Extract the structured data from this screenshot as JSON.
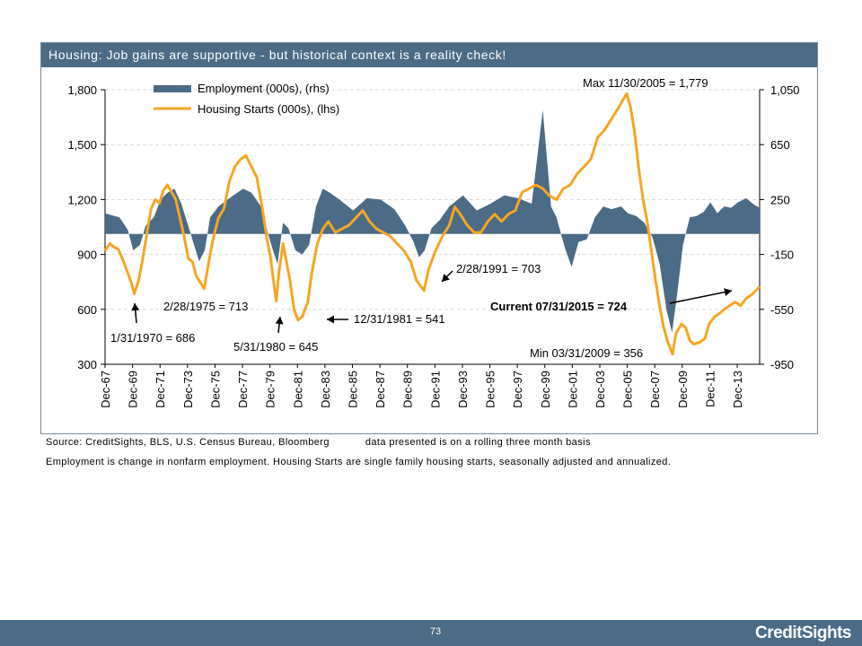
{
  "chart_data": {
    "type": "area+line",
    "title": "Housing: Job gains are supportive - but historical context is a reality check!",
    "x_tick_labels": [
      "Dec-67",
      "Dec-69",
      "Dec-71",
      "Dec-73",
      "Dec-75",
      "Dec-77",
      "Dec-79",
      "Dec-81",
      "Dec-83",
      "Dec-85",
      "Dec-87",
      "Dec-89",
      "Dec-91",
      "Dec-93",
      "Dec-95",
      "Dec-97",
      "Dec-99",
      "Dec-01",
      "Dec-03",
      "Dec-05",
      "Dec-07",
      "Dec-09",
      "Dec-11",
      "Dec-13"
    ],
    "x_range": [
      "1967-12",
      "2015-07"
    ],
    "y_left": {
      "ticks": [
        1800,
        1500,
        1200,
        900,
        600,
        300
      ],
      "tick_labels": [
        "1,800",
        "1,500",
        "1,200",
        "900",
        "600",
        "300"
      ],
      "range": [
        300,
        1800
      ]
    },
    "y_right": {
      "ticks": [
        1050,
        650,
        250,
        -150,
        -550,
        -950
      ],
      "tick_labels": [
        "1,050",
        "650",
        "250",
        "-150",
        "-550",
        "-950"
      ],
      "range": [
        -950,
        1050
      ]
    },
    "legend": {
      "placement": "top-left",
      "entries": [
        "Employment (000s), (rhs)",
        "Housing Starts (000s), (lhs)"
      ]
    },
    "series": [
      {
        "name": "Housing Starts (000s), (lhs)",
        "axis": "left",
        "color": "#f5a623",
        "points": [
          [
            1967.95,
            920
          ],
          [
            1968.3,
            960
          ],
          [
            1968.6,
            940
          ],
          [
            1968.9,
            930
          ],
          [
            1969.2,
            880
          ],
          [
            1969.5,
            820
          ],
          [
            1969.8,
            760
          ],
          [
            1970.08,
            686
          ],
          [
            1970.4,
            760
          ],
          [
            1970.7,
            880
          ],
          [
            1971.0,
            1020
          ],
          [
            1971.3,
            1150
          ],
          [
            1971.6,
            1200
          ],
          [
            1971.9,
            1180
          ],
          [
            1972.2,
            1250
          ],
          [
            1972.5,
            1280
          ],
          [
            1972.8,
            1240
          ],
          [
            1973.1,
            1200
          ],
          [
            1973.4,
            1100
          ],
          [
            1973.7,
            1000
          ],
          [
            1974.0,
            880
          ],
          [
            1974.3,
            860
          ],
          [
            1974.6,
            780
          ],
          [
            1975.16,
            713
          ],
          [
            1975.5,
            860
          ],
          [
            1975.8,
            980
          ],
          [
            1976.2,
            1100
          ],
          [
            1976.6,
            1150
          ],
          [
            1977.0,
            1300
          ],
          [
            1977.4,
            1380
          ],
          [
            1977.8,
            1420
          ],
          [
            1978.2,
            1440
          ],
          [
            1978.6,
            1380
          ],
          [
            1979.0,
            1320
          ],
          [
            1979.4,
            1150
          ],
          [
            1979.7,
            1000
          ],
          [
            1980.0,
            880
          ],
          [
            1980.2,
            760
          ],
          [
            1980.41,
            645
          ],
          [
            1980.6,
            800
          ],
          [
            1980.9,
            960
          ],
          [
            1981.1,
            880
          ],
          [
            1981.4,
            760
          ],
          [
            1981.7,
            600
          ],
          [
            1981.99,
            541
          ],
          [
            1982.3,
            560
          ],
          [
            1982.7,
            640
          ],
          [
            1983.0,
            800
          ],
          [
            1983.4,
            960
          ],
          [
            1983.8,
            1040
          ],
          [
            1984.2,
            1080
          ],
          [
            1984.7,
            1020
          ],
          [
            1985.2,
            1040
          ],
          [
            1985.7,
            1060
          ],
          [
            1986.2,
            1100
          ],
          [
            1986.7,
            1140
          ],
          [
            1987.2,
            1080
          ],
          [
            1987.7,
            1040
          ],
          [
            1988.2,
            1020
          ],
          [
            1988.7,
            1000
          ],
          [
            1989.2,
            960
          ],
          [
            1989.7,
            920
          ],
          [
            1990.2,
            860
          ],
          [
            1990.6,
            760
          ],
          [
            1991.16,
            703
          ],
          [
            1991.5,
            820
          ],
          [
            1992.0,
            920
          ],
          [
            1992.5,
            1000
          ],
          [
            1993.0,
            1060
          ],
          [
            1993.4,
            1160
          ],
          [
            1993.8,
            1120
          ],
          [
            1994.3,
            1060
          ],
          [
            1994.8,
            1020
          ],
          [
            1995.3,
            1020
          ],
          [
            1995.8,
            1080
          ],
          [
            1996.3,
            1120
          ],
          [
            1996.8,
            1080
          ],
          [
            1997.3,
            1120
          ],
          [
            1997.8,
            1140
          ],
          [
            1998.3,
            1240
          ],
          [
            1998.8,
            1260
          ],
          [
            1999.3,
            1280
          ],
          [
            1999.8,
            1260
          ],
          [
            2000.3,
            1220
          ],
          [
            2000.8,
            1200
          ],
          [
            2001.3,
            1260
          ],
          [
            2001.8,
            1280
          ],
          [
            2002.3,
            1340
          ],
          [
            2002.8,
            1380
          ],
          [
            2003.3,
            1420
          ],
          [
            2003.8,
            1540
          ],
          [
            2004.3,
            1580
          ],
          [
            2004.8,
            1640
          ],
          [
            2005.3,
            1700
          ],
          [
            2005.6,
            1740
          ],
          [
            2005.91,
            1779
          ],
          [
            2006.2,
            1700
          ],
          [
            2006.5,
            1560
          ],
          [
            2006.8,
            1360
          ],
          [
            2007.1,
            1200
          ],
          [
            2007.4,
            1080
          ],
          [
            2007.7,
            920
          ],
          [
            2008.0,
            760
          ],
          [
            2008.3,
            620
          ],
          [
            2008.6,
            500
          ],
          [
            2008.9,
            420
          ],
          [
            2009.24,
            356
          ],
          [
            2009.5,
            470
          ],
          [
            2009.9,
            520
          ],
          [
            2010.2,
            500
          ],
          [
            2010.5,
            430
          ],
          [
            2010.8,
            410
          ],
          [
            2011.2,
            420
          ],
          [
            2011.6,
            440
          ],
          [
            2011.9,
            520
          ],
          [
            2012.3,
            560
          ],
          [
            2012.7,
            580
          ],
          [
            2013.0,
            600
          ],
          [
            2013.4,
            620
          ],
          [
            2013.8,
            640
          ],
          [
            2014.2,
            620
          ],
          [
            2014.6,
            660
          ],
          [
            2015.0,
            680
          ],
          [
            2015.58,
            724
          ]
        ]
      },
      {
        "name": "Employment (000s), (rhs)",
        "axis": "right",
        "color": "#4b6b86",
        "points": [
          [
            1967.95,
            150
          ],
          [
            1969.0,
            120
          ],
          [
            1969.6,
            30
          ],
          [
            1970.0,
            -120
          ],
          [
            1970.5,
            -80
          ],
          [
            1970.9,
            60
          ],
          [
            1971.5,
            120
          ],
          [
            1972.0,
            250
          ],
          [
            1972.5,
            300
          ],
          [
            1973.0,
            330
          ],
          [
            1973.5,
            220
          ],
          [
            1974.0,
            60
          ],
          [
            1974.3,
            -40
          ],
          [
            1974.8,
            -200
          ],
          [
            1975.2,
            -120
          ],
          [
            1975.6,
            120
          ],
          [
            1976.2,
            200
          ],
          [
            1977.0,
            260
          ],
          [
            1978.0,
            330
          ],
          [
            1978.6,
            300
          ],
          [
            1979.3,
            200
          ],
          [
            1979.7,
            40
          ],
          [
            1980.1,
            -100
          ],
          [
            1980.5,
            -220
          ],
          [
            1980.9,
            80
          ],
          [
            1981.3,
            40
          ],
          [
            1981.8,
            -120
          ],
          [
            1982.3,
            -150
          ],
          [
            1982.8,
            -80
          ],
          [
            1983.3,
            200
          ],
          [
            1983.8,
            330
          ],
          [
            1984.3,
            300
          ],
          [
            1985.0,
            250
          ],
          [
            1986.0,
            170
          ],
          [
            1987.0,
            260
          ],
          [
            1988.0,
            250
          ],
          [
            1989.0,
            180
          ],
          [
            1989.8,
            60
          ],
          [
            1990.4,
            -60
          ],
          [
            1990.8,
            -170
          ],
          [
            1991.2,
            -120
          ],
          [
            1991.7,
            40
          ],
          [
            1992.3,
            100
          ],
          [
            1993.0,
            200
          ],
          [
            1994.0,
            280
          ],
          [
            1995.0,
            170
          ],
          [
            1996.0,
            220
          ],
          [
            1997.0,
            280
          ],
          [
            1998.0,
            260
          ],
          [
            1999.0,
            220
          ],
          [
            1999.8,
            900
          ],
          [
            2000.4,
            200
          ],
          [
            2000.8,
            120
          ],
          [
            2001.4,
            -100
          ],
          [
            2001.9,
            -240
          ],
          [
            2002.4,
            -60
          ],
          [
            2003.0,
            -40
          ],
          [
            2003.6,
            120
          ],
          [
            2004.2,
            200
          ],
          [
            2004.8,
            180
          ],
          [
            2005.5,
            200
          ],
          [
            2006.0,
            150
          ],
          [
            2006.6,
            130
          ],
          [
            2007.2,
            80
          ],
          [
            2007.8,
            -30
          ],
          [
            2008.3,
            -220
          ],
          [
            2008.8,
            -550
          ],
          [
            2009.2,
            -720
          ],
          [
            2009.6,
            -420
          ],
          [
            2010.0,
            -80
          ],
          [
            2010.5,
            120
          ],
          [
            2011.0,
            130
          ],
          [
            2011.5,
            160
          ],
          [
            2012.0,
            230
          ],
          [
            2012.5,
            150
          ],
          [
            2013.0,
            200
          ],
          [
            2013.5,
            190
          ],
          [
            2014.0,
            230
          ],
          [
            2014.6,
            260
          ],
          [
            2015.2,
            210
          ],
          [
            2015.58,
            190
          ]
        ]
      }
    ],
    "annotations": [
      {
        "text": "Max 11/30/2005 = 1,779"
      },
      {
        "text": "1/31/1970 = 686"
      },
      {
        "text": "2/28/1975 = 713"
      },
      {
        "text": "5/31/1980 = 645"
      },
      {
        "text": "12/31/1981 = 541"
      },
      {
        "text": "2/28/1991 = 703"
      },
      {
        "text": "Current 07/31/2015 = 724"
      },
      {
        "text": "Min 03/31/2009 = 356"
      }
    ]
  },
  "notes": {
    "source": "Source: CreditSights, BLS, U.S. Census Bureau, Bloomberg",
    "basis": "data presented is on a rolling three month basis",
    "definition": "Employment is change in nonfarm employment. Housing Starts are single family housing starts, seasonally adjusted and annualized."
  },
  "footer": {
    "page_number": "73",
    "brand": "CreditSights"
  }
}
